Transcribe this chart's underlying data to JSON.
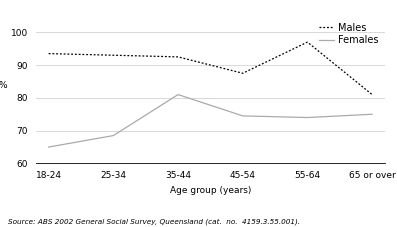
{
  "categories": [
    "18-24",
    "25-34",
    "35-44",
    "45-54",
    "55-64",
    "65 or over"
  ],
  "males": [
    93.5,
    93.0,
    92.5,
    87.5,
    97.0,
    81.0
  ],
  "females": [
    65.0,
    68.5,
    81.0,
    74.5,
    74.0,
    75.0
  ],
  "males_color": "#000000",
  "females_color": "#aaaaaa",
  "ylabel": "%",
  "xlabel": "Age group (years)",
  "ylim": [
    60,
    105
  ],
  "yticks": [
    60,
    70,
    80,
    90,
    100
  ],
  "legend_labels": [
    "Males",
    "Females"
  ],
  "source_text": "Source: ABS 2002 General Social Survey, Queensland (cat.  no.  4159.3.55.001).",
  "background_color": "#ffffff",
  "tick_fontsize": 6.5,
  "label_fontsize": 6.5,
  "legend_fontsize": 7
}
